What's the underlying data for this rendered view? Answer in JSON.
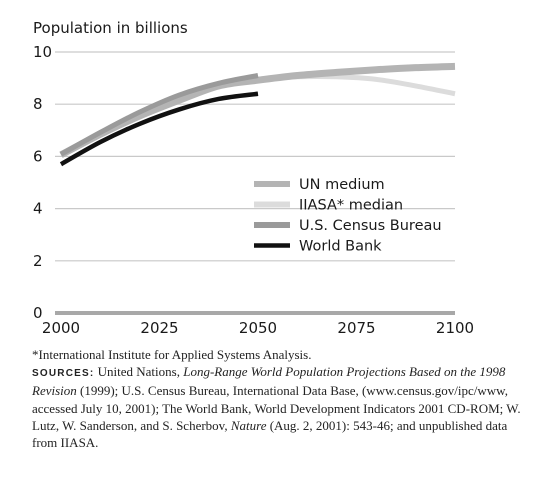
{
  "chart_data": {
    "type": "line",
    "ylabel": "Population in billions",
    "xlabel": "",
    "title": "",
    "xlim": [
      2000,
      2100
    ],
    "ylim": [
      0,
      10
    ],
    "x_ticks": [
      "2000",
      "2025",
      "2050",
      "2075",
      "2100"
    ],
    "y_ticks": [
      "0",
      "2",
      "4",
      "6",
      "8",
      "10"
    ],
    "grid": "horizontal",
    "legend_position": "lower-right",
    "series": [
      {
        "name": "UN medium",
        "color": "#b4b4b4",
        "points": [
          [
            2000,
            6.06
          ],
          [
            2010,
            6.85
          ],
          [
            2020,
            7.55
          ],
          [
            2030,
            8.15
          ],
          [
            2040,
            8.7
          ],
          [
            2050,
            8.92
          ],
          [
            2060,
            9.1
          ],
          [
            2070,
            9.22
          ],
          [
            2080,
            9.32
          ],
          [
            2090,
            9.4
          ],
          [
            2100,
            9.45
          ]
        ]
      },
      {
        "name": "IIASA* median",
        "color": "#dcdcdc",
        "points": [
          [
            2000,
            6.06
          ],
          [
            2010,
            6.9
          ],
          [
            2020,
            7.65
          ],
          [
            2030,
            8.25
          ],
          [
            2040,
            8.7
          ],
          [
            2050,
            8.95
          ],
          [
            2060,
            9.05
          ],
          [
            2070,
            9.05
          ],
          [
            2080,
            8.95
          ],
          [
            2090,
            8.7
          ],
          [
            2100,
            8.4
          ]
        ]
      },
      {
        "name": "U.S. Census Bureau",
        "color": "#9a9a9a",
        "points": [
          [
            2000,
            6.08
          ],
          [
            2010,
            6.92
          ],
          [
            2020,
            7.7
          ],
          [
            2030,
            8.35
          ],
          [
            2040,
            8.8
          ],
          [
            2050,
            9.1
          ]
        ]
      },
      {
        "name": "World Bank",
        "color": "#111111",
        "points": [
          [
            2000,
            5.7
          ],
          [
            2010,
            6.55
          ],
          [
            2020,
            7.25
          ],
          [
            2030,
            7.8
          ],
          [
            2040,
            8.2
          ],
          [
            2050,
            8.4
          ]
        ]
      }
    ]
  },
  "footnote": {
    "asterisk": "*International Institute for Applied Systems Analysis.",
    "sources_label": "SOURCES:",
    "s1": "United Nations,",
    "s1_italic": "Long-Range World Population Projections Based on the 1998 Revision",
    "s2": "(1999); U.S. Census Bureau, International Data Base, (www.census.gov/ipc/www, accessed July 10, 2001); The World Bank, World Development Indicators 2001 CD-ROM; W. Lutz, W. Sanderson, and S. Scherbov,",
    "s2_italic": "Nature",
    "s3": "(Aug. 2, 2001): 543-46; and unpublished data from IIASA."
  }
}
